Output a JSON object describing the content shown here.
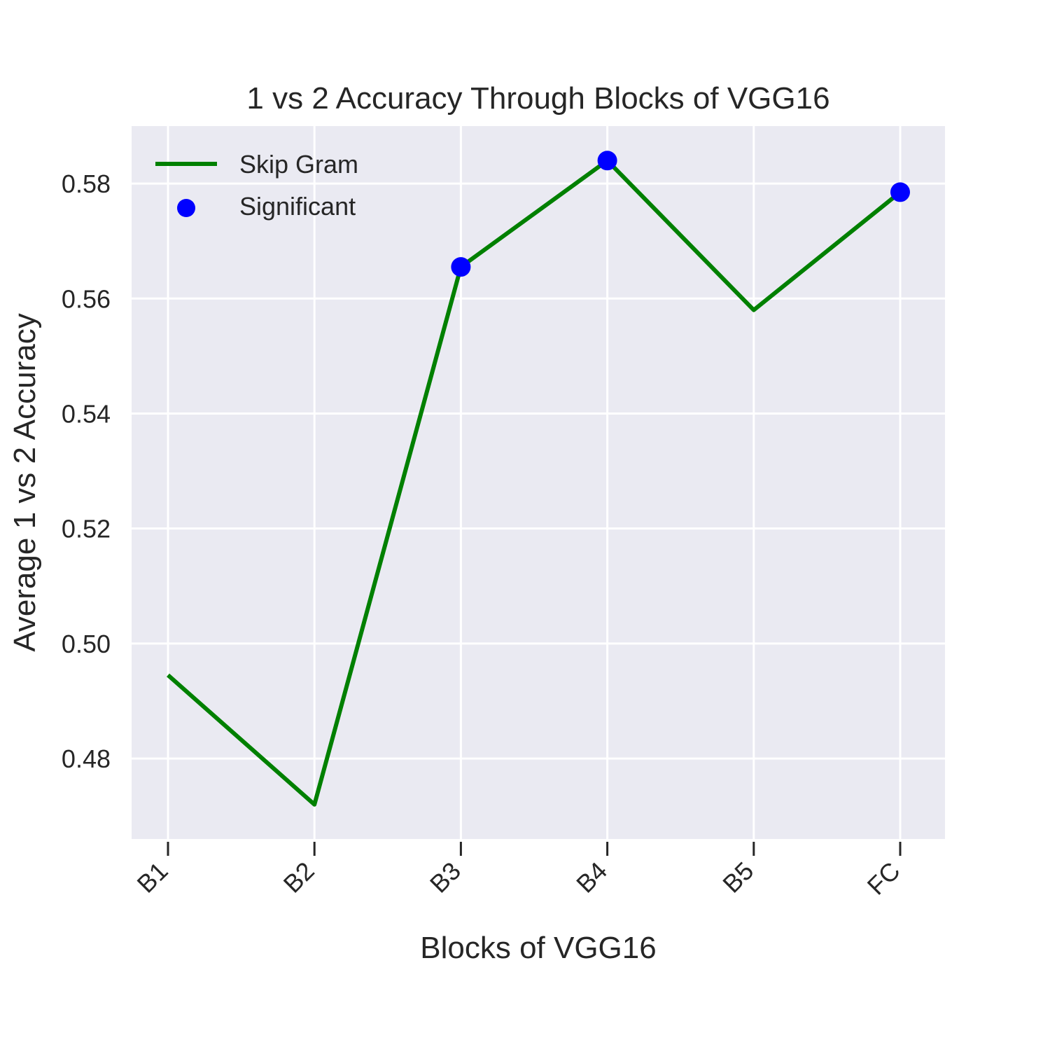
{
  "chart_data": {
    "type": "line",
    "title": "1 vs 2 Accuracy Through Blocks of VGG16",
    "xlabel": "Blocks of VGG16",
    "ylabel": "Average 1 vs 2 Accuracy",
    "categories": [
      "B1",
      "B2",
      "B3",
      "B4",
      "B5",
      "FC"
    ],
    "ylim": [
      0.466,
      0.59
    ],
    "yticks": [
      "0.48",
      "0.50",
      "0.52",
      "0.54",
      "0.56",
      "0.58"
    ],
    "grid": true,
    "legend_position": "top-left",
    "series": [
      {
        "name": "Skip Gram",
        "style": "line",
        "color": "#008000",
        "values": [
          0.4945,
          0.472,
          0.5655,
          0.584,
          0.558,
          0.5785
        ]
      },
      {
        "name": "Significant",
        "style": "scatter",
        "color": "#0000ff",
        "points": [
          {
            "x": "B3",
            "y": 0.5655
          },
          {
            "x": "B4",
            "y": 0.584
          },
          {
            "x": "FC",
            "y": 0.5785
          }
        ]
      }
    ],
    "background_color": "#eaeaf2",
    "grid_color": "#ffffff"
  }
}
